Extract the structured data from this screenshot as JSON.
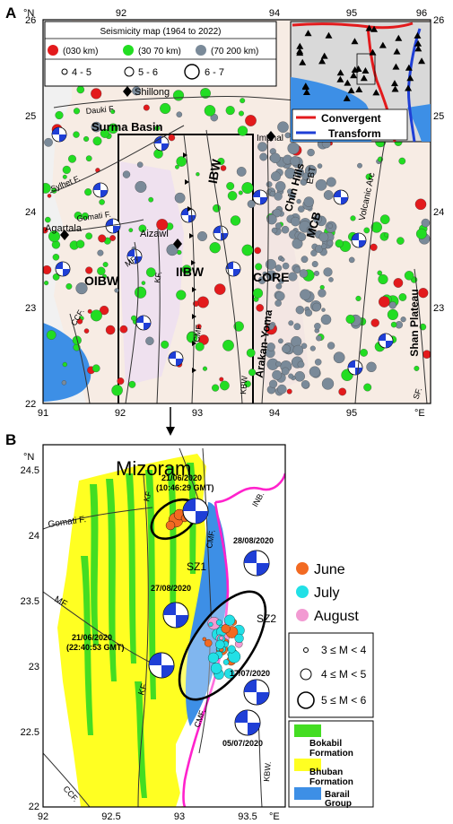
{
  "panel_a": {
    "label": "A",
    "lat_unit": "°N",
    "lon_unit": "°E",
    "lat_ticks": [
      "26",
      "25",
      "24",
      "23",
      "22"
    ],
    "lon_ticks": [
      "91",
      "92",
      "93",
      "94",
      "95",
      "96"
    ],
    "legend": {
      "title": "Seismicity map (1964 to 2022)",
      "depth_classes": [
        {
          "label": "(030 km)",
          "color": "#e31a1c"
        },
        {
          "label": "(30 70 km)",
          "color": "#22dd22"
        },
        {
          "label": "(70  200 km)",
          "color": "#7a8a99"
        }
      ],
      "magnitude_classes": [
        "4 - 5",
        "5 - 6",
        "6 - 7"
      ]
    },
    "inset_legend": [
      {
        "label": "Convergent",
        "color": "#e31a1c"
      },
      {
        "label": "Transform",
        "color": "#1f3fd6"
      }
    ],
    "places": [
      "Shillong",
      "Imphal",
      "Agartala",
      "Aizawl",
      "Surma Basin",
      "Shan Plateau"
    ],
    "tectonic_labels": [
      "IBW",
      "IIBW",
      "OIBW",
      "CORE",
      "MCB",
      "EBT",
      "Chin Hills",
      "Arakan-Yoma",
      "Volcanic Arc"
    ],
    "fault_labels": [
      "Dauki F.",
      "Sylhet F.",
      "Gomati F.",
      "MF.",
      "KF.",
      "CMF",
      "CCF.",
      "KBW",
      "SF."
    ]
  },
  "panel_b": {
    "label": "B",
    "title": "Mizoram",
    "lat_unit": "°N",
    "lon_unit": "°E",
    "lat_ticks": [
      "24.5",
      "24",
      "23.5",
      "23",
      "22.5",
      "22"
    ],
    "lon_ticks": [
      "92",
      "92.5",
      "93",
      "93.5"
    ],
    "events": [
      {
        "date": "21/06/2020",
        "time": "(10:46:29 GMT)"
      },
      {
        "date": "28/08/2020"
      },
      {
        "date": "27/08/2020"
      },
      {
        "date": "21/06/2020",
        "time": "(22:40:53 GMT)"
      },
      {
        "date": "17/07/2020"
      },
      {
        "date": "05/07/2020"
      }
    ],
    "zones": [
      "SZ1",
      "SZ2"
    ],
    "fault_labels": [
      "Gomati F.",
      "KF",
      "CMF.",
      "INB.",
      "MF",
      "KF",
      "CMF.",
      "CCF.",
      "KBW."
    ],
    "month_legend": [
      {
        "label": "June",
        "color": "#f26a22"
      },
      {
        "label": "July",
        "color": "#22e0e6"
      },
      {
        "label": "August",
        "color": "#f29ad2"
      }
    ],
    "magnitude_legend": [
      "3 ≤ M < 4",
      "4 ≤ M < 5",
      "5 ≤ M < 6"
    ],
    "geology_legend": [
      {
        "line1": "Bokabil",
        "line2": "Formation",
        "color": "#44dd22"
      },
      {
        "line1": "Bhuban",
        "line2": "Formation",
        "color": "#ffff22"
      },
      {
        "line1": "Barail",
        "line2": "Group",
        "color": "#3d8fe6"
      }
    ]
  }
}
